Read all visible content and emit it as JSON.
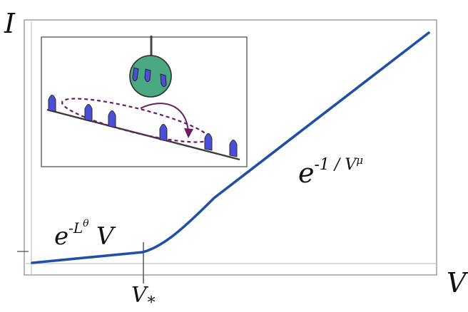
{
  "diagram": {
    "y_axis_label": "I",
    "x_axis_label": "V",
    "crossover_label": {
      "base": "V",
      "subscript": "*"
    },
    "low_regime_formula": {
      "base": "e",
      "exponent": "-L",
      "exponent_superscript": "θ",
      "factor": "V"
    },
    "high_regime_formula": {
      "base": "e",
      "exponent": "-1 / V",
      "exponent_superscript": "μ"
    },
    "colors": {
      "curve": "#1f4fa6",
      "frame": "#888888",
      "tip_sphere": "#4aa882",
      "site_fill": "#4b4fd8",
      "hop_arrow": "#6a1a66"
    },
    "inset": {
      "icons": [
        "stm-tip-icon",
        "localized-site-icon",
        "hopping-path-icon"
      ]
    }
  }
}
